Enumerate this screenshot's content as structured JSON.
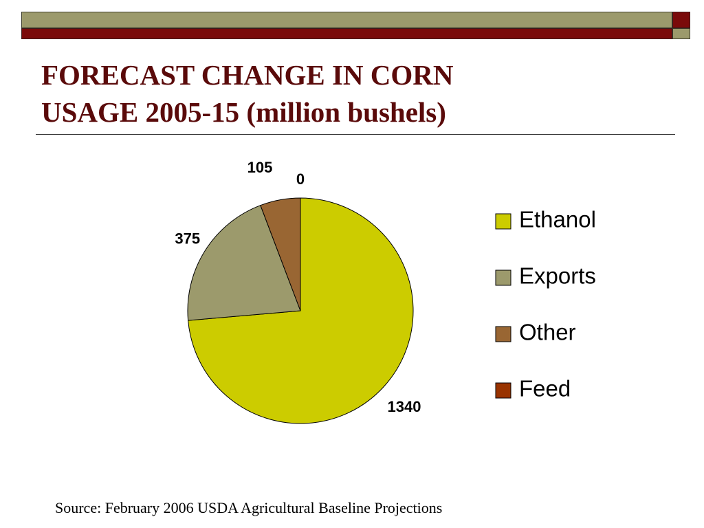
{
  "slide": {
    "title_line1": "FORECAST CHANGE IN CORN",
    "title_line2": "USAGE 2005-15 (million bushels)",
    "source": "Source: February 2006 USDA Agricultural Baseline Projections"
  },
  "chart_data": {
    "type": "pie",
    "title": "FORECAST CHANGE IN CORN USAGE 2005-15 (million bushels)",
    "categories": [
      "Ethanol",
      "Exports",
      "Other",
      "Feed"
    ],
    "values": [
      1340,
      375,
      105,
      0
    ],
    "data_labels": [
      "1340",
      "375",
      "105",
      "0"
    ],
    "colors": [
      "#cccc00",
      "#9c9a6c",
      "#996633",
      "#993300"
    ],
    "legend_position": "right",
    "start_angle": "12 o'clock, clockwise"
  }
}
